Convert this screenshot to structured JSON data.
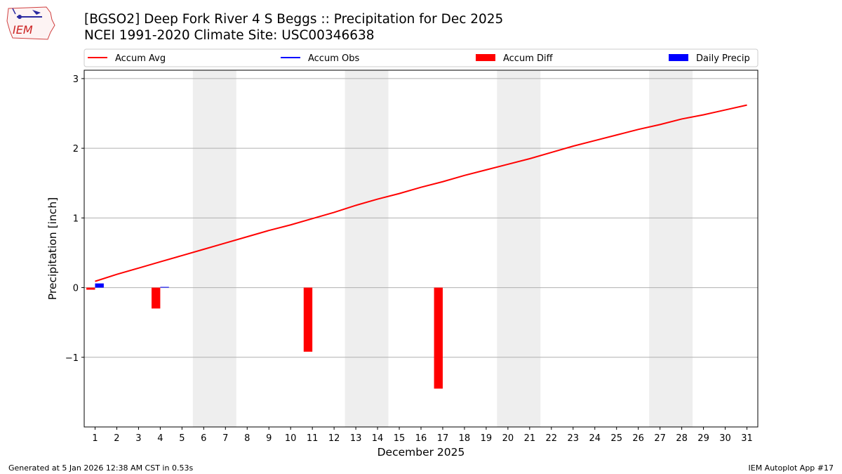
{
  "header": {
    "title": "[BGSO2] Deep Fork River 4 S Beggs :: Precipitation for Dec 2025",
    "subtitle": "NCEI 1991-2020 Climate Site: USC00346638",
    "logo_text": "IEM"
  },
  "footer": {
    "generated": "Generated at 5 Jan 2026 12:38 AM CST in 0.53s",
    "app": "IEM Autoplot App #17"
  },
  "colors": {
    "accum_avg": "#ff0000",
    "accum_obs": "#0000ff",
    "accum_diff": "#ff0000",
    "daily_precip": "#0000ff",
    "weekend_shade": "#eeeeee",
    "grid": "#b0b0b0"
  },
  "chart_data": {
    "type": "bar",
    "xlabel": "December 2025",
    "ylabel": "Precipitation [inch]",
    "xlim": [
      0.5,
      31.5
    ],
    "ylim": [
      -2.0,
      3.12
    ],
    "yticks": [
      -1,
      0,
      1,
      2,
      3
    ],
    "ytick_labels": [
      "−1",
      "0",
      "1",
      "2",
      "3"
    ],
    "categories": [
      "1",
      "2",
      "3",
      "4",
      "5",
      "6",
      "7",
      "8",
      "9",
      "10",
      "11",
      "12",
      "13",
      "14",
      "15",
      "16",
      "17",
      "18",
      "19",
      "20",
      "21",
      "22",
      "23",
      "24",
      "25",
      "26",
      "27",
      "28",
      "29",
      "30",
      "31"
    ],
    "grid": "horizontal",
    "legend": {
      "placement": "top",
      "entries": [
        {
          "label": "Accum Avg",
          "kind": "line",
          "color": "#ff0000"
        },
        {
          "label": "Accum Obs",
          "kind": "line",
          "color": "#0000ff"
        },
        {
          "label": "Accum Diff",
          "kind": "bar",
          "color": "#ff0000"
        },
        {
          "label": "Daily Precip",
          "kind": "bar",
          "color": "#0000ff"
        }
      ]
    },
    "shaded_weekends": [
      [
        6,
        7
      ],
      [
        13,
        14
      ],
      [
        20,
        21
      ],
      [
        27,
        28
      ]
    ],
    "series": [
      {
        "name": "Accum Avg",
        "type": "line",
        "values": [
          0.09,
          0.19,
          0.28,
          0.37,
          0.46,
          0.55,
          0.64,
          0.73,
          0.82,
          0.9,
          0.99,
          1.08,
          1.18,
          1.27,
          1.35,
          1.44,
          1.52,
          1.61,
          1.69,
          1.77,
          1.85,
          1.94,
          2.03,
          2.11,
          2.19,
          2.27,
          2.34,
          2.42,
          2.48,
          2.55,
          2.62
        ]
      },
      {
        "name": "Accum Diff",
        "type": "bar",
        "values": [
          -0.03,
          null,
          null,
          -0.3,
          null,
          null,
          null,
          null,
          null,
          null,
          -0.92,
          null,
          null,
          null,
          null,
          null,
          -1.45,
          null,
          null,
          null,
          null,
          null,
          null,
          null,
          null,
          null,
          null,
          null,
          null,
          null,
          null
        ]
      },
      {
        "name": "Daily Precip",
        "type": "bar",
        "values": [
          0.06,
          null,
          null,
          0.01,
          null,
          null,
          null,
          null,
          null,
          null,
          null,
          null,
          null,
          null,
          null,
          null,
          null,
          null,
          null,
          null,
          null,
          null,
          null,
          null,
          null,
          null,
          null,
          null,
          null,
          null,
          null
        ]
      }
    ]
  }
}
